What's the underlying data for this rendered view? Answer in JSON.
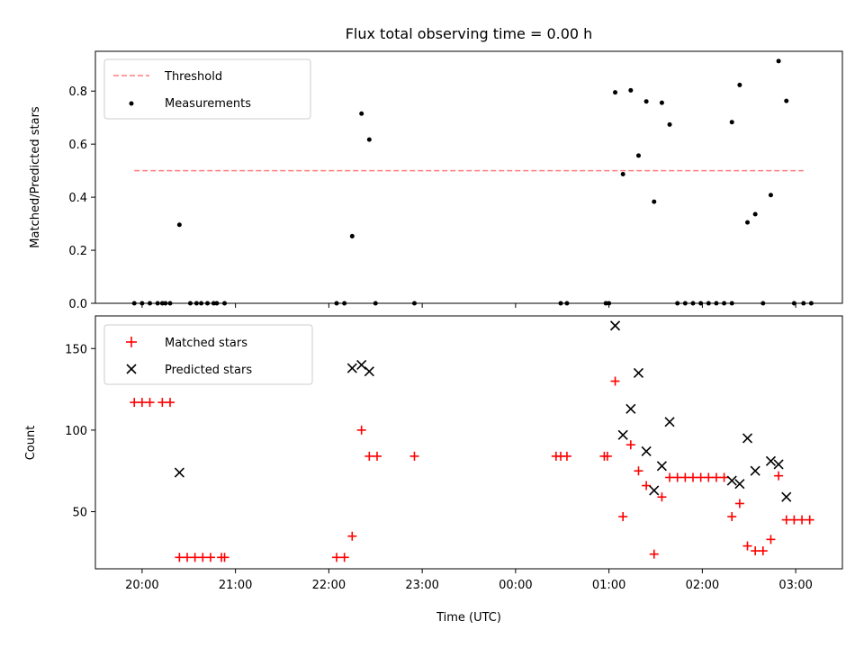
{
  "chart_data": [
    {
      "type": "scatter",
      "title": "Flux total observing time = 0.00 h",
      "xlabel": "",
      "ylabel": "Matched/Predicted stars",
      "xlim": [
        "19:30",
        "03:30"
      ],
      "ylim": [
        0,
        0.95
      ],
      "yticks": [
        0.0,
        0.2,
        0.4,
        0.6,
        0.8
      ],
      "grid": false,
      "legend_position": "top-left",
      "threshold": {
        "name": "Threshold",
        "value": 0.5,
        "x_range": [
          "19:55",
          "03:05"
        ],
        "color": "#ff7f7f",
        "style": "dashed"
      },
      "series": [
        {
          "name": "Measurements",
          "color": "#000000",
          "marker": "dot",
          "points": [
            [
              "19:55",
              0.0
            ],
            [
              "20:00",
              0.0
            ],
            [
              "20:05",
              0.0
            ],
            [
              "20:10",
              0.0
            ],
            [
              "20:13",
              0.0
            ],
            [
              "20:15",
              0.0
            ],
            [
              "20:18",
              0.0
            ],
            [
              "20:24",
              0.296
            ],
            [
              "20:31",
              0.0
            ],
            [
              "20:35",
              0.0
            ],
            [
              "20:38",
              0.0
            ],
            [
              "20:42",
              0.0
            ],
            [
              "20:46",
              0.0
            ],
            [
              "20:48",
              0.0
            ],
            [
              "20:53",
              0.0
            ],
            [
              "22:05",
              0.0
            ],
            [
              "22:10",
              0.0
            ],
            [
              "22:15",
              0.253
            ],
            [
              "22:21",
              0.715
            ],
            [
              "22:26",
              0.617
            ],
            [
              "22:30",
              0.0
            ],
            [
              "22:55",
              0.0
            ],
            [
              "00:29",
              0.0
            ],
            [
              "00:33",
              0.0
            ],
            [
              "00:58",
              0.0
            ],
            [
              "01:00",
              0.0
            ],
            [
              "01:04",
              0.795
            ],
            [
              "01:09",
              0.487
            ],
            [
              "01:14",
              0.803
            ],
            [
              "01:19",
              0.557
            ],
            [
              "01:24",
              0.761
            ],
            [
              "01:29",
              0.383
            ],
            [
              "01:34",
              0.756
            ],
            [
              "01:39",
              0.674
            ],
            [
              "01:44",
              0.0
            ],
            [
              "01:49",
              0.0
            ],
            [
              "01:54",
              0.0
            ],
            [
              "01:59",
              0.0
            ],
            [
              "02:04",
              0.0
            ],
            [
              "02:09",
              0.0
            ],
            [
              "02:14",
              0.0
            ],
            [
              "02:19",
              0.0
            ],
            [
              "02:19",
              0.683
            ],
            [
              "02:24",
              0.823
            ],
            [
              "02:29",
              0.305
            ],
            [
              "02:34",
              0.336
            ],
            [
              "02:39",
              0.0
            ],
            [
              "02:44",
              0.408
            ],
            [
              "02:49",
              0.913
            ],
            [
              "02:54",
              0.763
            ],
            [
              "02:59",
              0.0
            ],
            [
              "03:05",
              0.0
            ],
            [
              "03:10",
              0.0
            ]
          ]
        }
      ]
    },
    {
      "type": "scatter",
      "title": "",
      "xlabel": "Time (UTC)",
      "ylabel": "Count",
      "xlim": [
        "19:30",
        "03:30"
      ],
      "ylim": [
        15,
        170
      ],
      "xticks": [
        "20:00",
        "21:00",
        "22:00",
        "23:00",
        "00:00",
        "01:00",
        "02:00",
        "03:00"
      ],
      "yticks": [
        50,
        100,
        150
      ],
      "grid": false,
      "legend_position": "top-left",
      "series": [
        {
          "name": "Matched stars",
          "color": "#ff0000",
          "marker": "plus",
          "points": [
            [
              "19:55",
              117
            ],
            [
              "20:00",
              117
            ],
            [
              "20:05",
              117
            ],
            [
              "20:13",
              117
            ],
            [
              "20:18",
              117
            ],
            [
              "20:24",
              22
            ],
            [
              "20:29",
              22
            ],
            [
              "20:34",
              22
            ],
            [
              "20:39",
              22
            ],
            [
              "20:44",
              22
            ],
            [
              "20:51",
              22
            ],
            [
              "20:53",
              22
            ],
            [
              "22:05",
              22
            ],
            [
              "22:10",
              22
            ],
            [
              "22:15",
              35
            ],
            [
              "22:21",
              100
            ],
            [
              "22:26",
              84
            ],
            [
              "22:31",
              84
            ],
            [
              "22:55",
              84
            ],
            [
              "00:26",
              84
            ],
            [
              "00:29",
              84
            ],
            [
              "00:33",
              84
            ],
            [
              "00:57",
              84
            ],
            [
              "00:59",
              84
            ],
            [
              "01:04",
              130
            ],
            [
              "01:09",
              47
            ],
            [
              "01:14",
              91
            ],
            [
              "01:19",
              75
            ],
            [
              "01:24",
              66
            ],
            [
              "01:29",
              24
            ],
            [
              "01:34",
              59
            ],
            [
              "01:39",
              71
            ],
            [
              "01:44",
              71
            ],
            [
              "01:49",
              71
            ],
            [
              "01:54",
              71
            ],
            [
              "01:59",
              71
            ],
            [
              "02:04",
              71
            ],
            [
              "02:09",
              71
            ],
            [
              "02:14",
              71
            ],
            [
              "02:19",
              47
            ],
            [
              "02:24",
              55
            ],
            [
              "02:29",
              29
            ],
            [
              "02:34",
              26
            ],
            [
              "02:39",
              26
            ],
            [
              "02:44",
              33
            ],
            [
              "02:49",
              72
            ],
            [
              "02:54",
              45
            ],
            [
              "02:59",
              45
            ],
            [
              "03:04",
              45
            ],
            [
              "03:09",
              45
            ]
          ]
        },
        {
          "name": "Predicted stars",
          "color": "#000000",
          "marker": "x",
          "points": [
            [
              "20:24",
              74
            ],
            [
              "22:15",
              138
            ],
            [
              "22:21",
              140
            ],
            [
              "22:26",
              136
            ],
            [
              "01:04",
              164
            ],
            [
              "01:09",
              97
            ],
            [
              "01:14",
              113
            ],
            [
              "01:19",
              135
            ],
            [
              "01:24",
              87
            ],
            [
              "01:29",
              63
            ],
            [
              "01:34",
              78
            ],
            [
              "01:39",
              105
            ],
            [
              "02:19",
              69
            ],
            [
              "02:24",
              67
            ],
            [
              "02:29",
              95
            ],
            [
              "02:34",
              75
            ],
            [
              "02:44",
              81
            ],
            [
              "02:49",
              79
            ],
            [
              "02:54",
              59
            ]
          ]
        }
      ]
    }
  ]
}
